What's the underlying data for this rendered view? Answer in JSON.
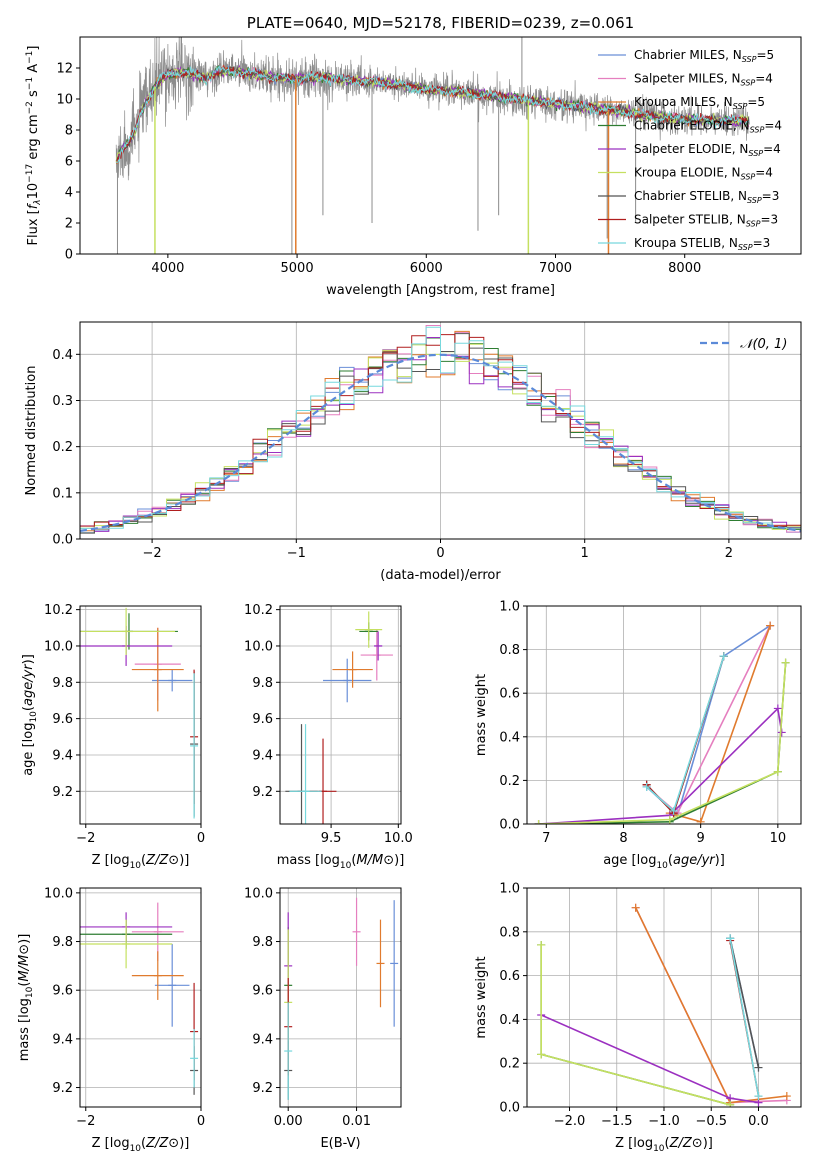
{
  "palette": {
    "Chabrier MILES": "#6a8fd8",
    "Salpeter MILES": "#e57fbf",
    "Kroupa MILES": "#e07b2e",
    "Chabrier ELODIE": "#2e7d32",
    "Salpeter ELODIE": "#9b30c0",
    "Kroupa ELODIE": "#c5e060",
    "Chabrier STELIB": "#555555",
    "Salpeter STELIB": "#b01e1e",
    "Kroupa STELIB": "#77d8dd",
    "data": "#8c8c8c",
    "normal": "#5b8ad8"
  },
  "chart_data": [
    {
      "id": "spectrum",
      "type": "line",
      "title": "PLATE=0640, MJD=52178, FIBERID=0239, z=0.061",
      "xlabel": "wavelength [Angstrom, rest frame]",
      "ylabel": "Flux [f_λ 10^-17 erg cm^-2 s^-1 A^-1]",
      "xlim": [
        3320,
        8900
      ],
      "ylim": [
        0,
        14
      ],
      "xticks": [
        4000,
        5000,
        6000,
        7000,
        8000
      ],
      "yticks": [
        0,
        2,
        4,
        6,
        8,
        10,
        12
      ],
      "legend_position": "upper-right",
      "legend": [
        {
          "model": "Chabrier MILES",
          "label": "Chabrier MILES, N_SSP=5"
        },
        {
          "model": "Salpeter MILES",
          "label": "Salpeter MILES, N_SSP=4"
        },
        {
          "model": "Kroupa MILES",
          "label": "Kroupa MILES, N_SSP=5"
        },
        {
          "model": "Chabrier ELODIE",
          "label": "Chabrier ELODIE, N_SSP=4"
        },
        {
          "model": "Salpeter ELODIE",
          "label": "Salpeter ELODIE, N_SSP=4"
        },
        {
          "model": "Kroupa ELODIE",
          "label": "Kroupa ELODIE, N_SSP=4"
        },
        {
          "model": "Chabrier STELIB",
          "label": "Chabrier STELIB, N_SSP=3"
        },
        {
          "model": "Salpeter STELIB",
          "label": "Salpeter STELIB, N_SSP=3"
        },
        {
          "model": "Kroupa STELIB",
          "label": "Kroupa STELIB, N_SSP=3"
        }
      ],
      "continuum": {
        "x": [
          3600,
          3650,
          3700,
          3750,
          3800,
          3850,
          3900,
          3950,
          4000,
          4100,
          4200,
          4300,
          4400,
          4500,
          4600,
          4800,
          5000,
          5200,
          5400,
          5600,
          5800,
          6000,
          6200,
          6400,
          6600,
          6800,
          7000,
          7200,
          7400,
          7600,
          7800,
          8000,
          8200,
          8400,
          8500
        ],
        "y": [
          6.0,
          6.8,
          7.2,
          8.0,
          9.3,
          10.0,
          10.8,
          11.3,
          11.6,
          11.7,
          11.6,
          11.3,
          11.8,
          11.8,
          11.7,
          11.4,
          11.3,
          11.4,
          11.2,
          11.1,
          10.9,
          10.6,
          10.5,
          10.3,
          10.1,
          9.9,
          9.7,
          9.5,
          9.3,
          9.1,
          8.8,
          8.7,
          8.6,
          8.6,
          8.6
        ]
      },
      "data_spikes": [
        {
          "x": 3610,
          "y": 0
        },
        {
          "x": 4960,
          "y": 0
        },
        {
          "x": 5200,
          "y": 2.5
        },
        {
          "x": 5580,
          "y": 2.0
        },
        {
          "x": 6400,
          "y": 1.5
        },
        {
          "x": 6560,
          "y": 2.5
        },
        {
          "x": 6740,
          "y": 14
        },
        {
          "x": 7400,
          "y": 1.0
        },
        {
          "x": 7620,
          "y": 2.0
        }
      ],
      "model_spikes": [
        {
          "model": "Kroupa MILES",
          "x": 4990,
          "y": 0
        },
        {
          "model": "Kroupa ELODIE",
          "x": 3900,
          "y": 0
        },
        {
          "model": "Kroupa ELODIE",
          "x": 6790,
          "y": 0
        },
        {
          "model": "Kroupa MILES",
          "x": 7410,
          "y": 0
        }
      ]
    },
    {
      "id": "residuals",
      "type": "step",
      "xlabel": "(data-model)/error",
      "ylabel": "Normed distribution",
      "xlim": [
        -2.5,
        2.5
      ],
      "ylim": [
        0,
        0.47
      ],
      "xticks": [
        -2,
        -1,
        0,
        1,
        2
      ],
      "yticks": [
        0.0,
        0.1,
        0.2,
        0.3,
        0.4
      ],
      "bin_width": 0.1,
      "legend_position": "upper-right",
      "normal_curve": {
        "label": "𝒩(0, 1)",
        "mean": 0,
        "sd": 1
      }
    },
    {
      "id": "age_vs_Z",
      "type": "errorbar",
      "xlabel": "Z [log10(Z/Z⊙)]",
      "ylabel": "age  [log10(age/yr)]",
      "xlim": [
        -2.1,
        0
      ],
      "ylim": [
        9.02,
        10.22
      ],
      "xticks": [
        -2,
        0
      ],
      "yticks": [
        9.2,
        9.4,
        9.6,
        9.8,
        10.0,
        10.2
      ],
      "points": [
        {
          "model": "Chabrier MILES",
          "x": -0.5,
          "xerr": 0.35,
          "y": 9.81,
          "yerr": 0.06
        },
        {
          "model": "Salpeter MILES",
          "x": -0.75,
          "xerr": 0.4,
          "y": 9.9,
          "yerr": 0.2
        },
        {
          "model": "Kroupa MILES",
          "x": -0.75,
          "xerr": 0.45,
          "y": 9.87,
          "yerr": 0.23
        },
        {
          "model": "Chabrier ELODIE",
          "x": -1.25,
          "xerr": 0.85,
          "y": 10.08,
          "yerr": 0.1
        },
        {
          "model": "Salpeter ELODIE",
          "x": -1.3,
          "xerr": 0.8,
          "y": 10.0,
          "yerr": 0.11
        },
        {
          "model": "Kroupa ELODIE",
          "x": -1.3,
          "xerr": 0.85,
          "y": 10.08,
          "yerr": 0.13
        },
        {
          "model": "Chabrier STELIB",
          "x": -0.12,
          "xerr": 0.0,
          "y": 9.46,
          "yerr": 0.4
        },
        {
          "model": "Salpeter STELIB",
          "x": -0.12,
          "xerr": 0.0,
          "y": 9.5,
          "yerr": 0.37
        },
        {
          "model": "Kroupa STELIB",
          "x": -0.12,
          "xerr": 0.0,
          "y": 9.45,
          "yerr": 0.4
        }
      ]
    },
    {
      "id": "age_vs_mass",
      "type": "errorbar",
      "xlabel": "mass [log10(M/M⊙)]",
      "ylabel": "",
      "xlim": [
        9.12,
        10.02
      ],
      "ylim": [
        9.02,
        10.22
      ],
      "xticks": [
        9.5,
        10.0
      ],
      "yticks": [
        9.2,
        9.4,
        9.6,
        9.8,
        10.0,
        10.2
      ],
      "points": [
        {
          "model": "Chabrier MILES",
          "x": 9.62,
          "xerr": 0.18,
          "y": 9.81,
          "yerr": 0.12
        },
        {
          "model": "Salpeter MILES",
          "x": 9.84,
          "xerr": 0.12,
          "y": 9.95,
          "yerr": 0.14
        },
        {
          "model": "Kroupa MILES",
          "x": 9.66,
          "xerr": 0.15,
          "y": 9.87,
          "yerr": 0.1
        },
        {
          "model": "Chabrier ELODIE",
          "x": 9.78,
          "xerr": 0.07,
          "y": 10.08,
          "yerr": 0.05
        },
        {
          "model": "Salpeter ELODIE",
          "x": 9.85,
          "xerr": 0.03,
          "y": 10.0,
          "yerr": 0.08
        },
        {
          "model": "Kroupa ELODIE",
          "x": 9.78,
          "xerr": 0.1,
          "y": 10.09,
          "yerr": 0.1
        },
        {
          "model": "Chabrier STELIB",
          "x": 9.28,
          "xerr": 0.12,
          "y": 9.2,
          "yerr": 0.37
        },
        {
          "model": "Salpeter STELIB",
          "x": 9.44,
          "xerr": 0.1,
          "y": 9.2,
          "yerr": 0.29
        },
        {
          "model": "Kroupa STELIB",
          "x": 9.31,
          "xerr": 0.12,
          "y": 9.2,
          "yerr": 0.37
        }
      ]
    },
    {
      "id": "weight_vs_age",
      "type": "line",
      "xlabel": "age  [log10(age/yr)]",
      "ylabel": "mass weight",
      "xlim": [
        6.75,
        10.3
      ],
      "ylim": [
        0,
        1.0
      ],
      "xticks": [
        7,
        8,
        9,
        10
      ],
      "yticks": [
        0.0,
        0.2,
        0.4,
        0.6,
        0.8,
        1.0
      ],
      "series": [
        {
          "model": "Chabrier MILES",
          "x": [
            8.3,
            8.7,
            9.3,
            9.9
          ],
          "y": [
            0.17,
            0.04,
            0.77,
            0.91
          ]
        },
        {
          "model": "Salpeter MILES",
          "x": [
            8.3,
            8.7,
            9.9
          ],
          "y": [
            0.17,
            0.05,
            0.91
          ]
        },
        {
          "model": "Kroupa MILES",
          "x": [
            8.6,
            9.0,
            9.9
          ],
          "y": [
            0.05,
            0.01,
            0.91
          ]
        },
        {
          "model": "Chabrier ELODIE",
          "x": [
            6.9,
            8.6,
            10.0,
            10.1
          ],
          "y": [
            0.0,
            0.01,
            0.24,
            0.74
          ]
        },
        {
          "model": "Salpeter ELODIE",
          "x": [
            6.9,
            8.6,
            10.0,
            10.05
          ],
          "y": [
            0.0,
            0.04,
            0.53,
            0.42
          ]
        },
        {
          "model": "Kroupa ELODIE",
          "x": [
            6.9,
            8.6,
            10.0,
            10.1
          ],
          "y": [
            0.0,
            0.02,
            0.24,
            0.74
          ]
        },
        {
          "model": "Chabrier STELIB",
          "x": [
            8.3,
            8.65,
            9.3
          ],
          "y": [
            0.18,
            0.05,
            0.77
          ]
        },
        {
          "model": "Salpeter STELIB",
          "x": [
            8.3,
            8.65,
            9.3
          ],
          "y": [
            0.18,
            0.05,
            0.77
          ]
        },
        {
          "model": "Kroupa STELIB",
          "x": [
            8.3,
            8.65,
            9.3
          ],
          "y": [
            0.17,
            0.06,
            0.77
          ]
        }
      ]
    },
    {
      "id": "mass_vs_Z",
      "type": "errorbar",
      "xlabel": "Z [log10(Z/Z⊙)]",
      "ylabel": "mass [log10(M/M⊙)]",
      "xlim": [
        -2.1,
        0
      ],
      "ylim": [
        9.12,
        10.02
      ],
      "xticks": [
        -2,
        0
      ],
      "yticks": [
        9.2,
        9.4,
        9.6,
        9.8,
        10.0
      ],
      "points": [
        {
          "model": "Chabrier MILES",
          "x": -0.5,
          "xerr": 0.3,
          "y": 9.62,
          "yerr": 0.17
        },
        {
          "model": "Salpeter MILES",
          "x": -0.75,
          "xerr": 0.45,
          "y": 9.84,
          "yerr": 0.12
        },
        {
          "model": "Kroupa MILES",
          "x": -0.75,
          "xerr": 0.45,
          "y": 9.66,
          "yerr": 0.1
        },
        {
          "model": "Chabrier ELODIE",
          "x": -1.3,
          "xerr": 0.8,
          "y": 9.83,
          "yerr": 0.06
        },
        {
          "model": "Salpeter ELODIE",
          "x": -1.3,
          "xerr": 0.8,
          "y": 9.86,
          "yerr": 0.06
        },
        {
          "model": "Kroupa ELODIE",
          "x": -1.3,
          "xerr": 0.8,
          "y": 9.79,
          "yerr": 0.1
        },
        {
          "model": "Chabrier STELIB",
          "x": -0.12,
          "xerr": 0.0,
          "y": 9.27,
          "yerr": 0.1
        },
        {
          "model": "Salpeter STELIB",
          "x": -0.12,
          "xerr": 0.0,
          "y": 9.43,
          "yerr": 0.2
        },
        {
          "model": "Kroupa STELIB",
          "x": -0.12,
          "xerr": 0.0,
          "y": 9.32,
          "yerr": 0.12
        }
      ]
    },
    {
      "id": "mass_vs_EBV",
      "type": "errorbar",
      "xlabel": "E(B-V)",
      "ylabel": "",
      "xlim": [
        -0.0012,
        0.0165
      ],
      "ylim": [
        9.12,
        10.02
      ],
      "xticks": [
        0.0,
        0.01
      ],
      "yticks": [
        9.2,
        9.4,
        9.6,
        9.8,
        10.0
      ],
      "points": [
        {
          "model": "Chabrier MILES",
          "x": 0.0155,
          "xerr": 0.0,
          "y": 9.71,
          "yerr": 0.26
        },
        {
          "model": "Salpeter MILES",
          "x": 0.01,
          "xerr": 0.0,
          "y": 9.84,
          "yerr": 0.14
        },
        {
          "model": "Kroupa MILES",
          "x": 0.0135,
          "xerr": 0.0,
          "y": 9.71,
          "yerr": 0.18
        },
        {
          "model": "Chabrier ELODIE",
          "x": 0.0,
          "xerr": 0.0,
          "y": 9.62,
          "yerr": 0.24
        },
        {
          "model": "Salpeter ELODIE",
          "x": 0.0,
          "xerr": 0.0,
          "y": 9.7,
          "yerr": 0.22
        },
        {
          "model": "Kroupa ELODIE",
          "x": 0.0,
          "xerr": 0.0,
          "y": 9.55,
          "yerr": 0.3
        },
        {
          "model": "Chabrier STELIB",
          "x": 0.0,
          "xerr": 0.0,
          "y": 9.27,
          "yerr": 0.12
        },
        {
          "model": "Salpeter STELIB",
          "x": 0.0,
          "xerr": 0.0,
          "y": 9.45,
          "yerr": 0.2
        },
        {
          "model": "Kroupa STELIB",
          "x": 0.0,
          "xerr": 0.0,
          "y": 9.35,
          "yerr": 0.2
        }
      ]
    },
    {
      "id": "weight_vs_Z",
      "type": "line",
      "xlabel": "Z [log10(Z/Z⊙)]",
      "ylabel": "mass weight",
      "xlim": [
        -2.45,
        0.45
      ],
      "ylim": [
        0,
        1.0
      ],
      "xticks": [
        -2.0,
        -1.5,
        -1.0,
        -0.5,
        0.0
      ],
      "yticks": [
        0.0,
        0.2,
        0.4,
        0.6,
        0.8,
        1.0
      ],
      "series": [
        {
          "model": "Chabrier MILES",
          "x": [
            -0.3,
            0.0
          ],
          "y": [
            0.77,
            0.18
          ]
        },
        {
          "model": "Salpeter MILES",
          "x": [
            -1.3,
            -0.3,
            0.3
          ],
          "y": [
            0.91,
            0.02,
            0.03
          ]
        },
        {
          "model": "Kroupa MILES",
          "x": [
            -1.3,
            -0.3,
            0.3
          ],
          "y": [
            0.91,
            0.02,
            0.05
          ]
        },
        {
          "model": "Chabrier ELODIE",
          "x": [
            -2.3,
            -2.3,
            -0.3
          ],
          "y": [
            0.74,
            0.24,
            0.01
          ]
        },
        {
          "model": "Salpeter ELODIE",
          "x": [
            -2.3,
            -0.3,
            0.0
          ],
          "y": [
            0.42,
            0.04,
            0.02
          ]
        },
        {
          "model": "Kroupa ELODIE",
          "x": [
            -2.3,
            -2.3,
            -0.3
          ],
          "y": [
            0.74,
            0.24,
            0.01
          ]
        },
        {
          "model": "Chabrier STELIB",
          "x": [
            -0.3,
            0.0
          ],
          "y": [
            0.77,
            0.18
          ]
        },
        {
          "model": "Salpeter STELIB",
          "x": [
            -0.3,
            0.0
          ],
          "y": [
            0.76,
            0.05
          ]
        },
        {
          "model": "Kroupa STELIB",
          "x": [
            -0.3,
            0.0
          ],
          "y": [
            0.77,
            0.05
          ]
        }
      ]
    }
  ]
}
